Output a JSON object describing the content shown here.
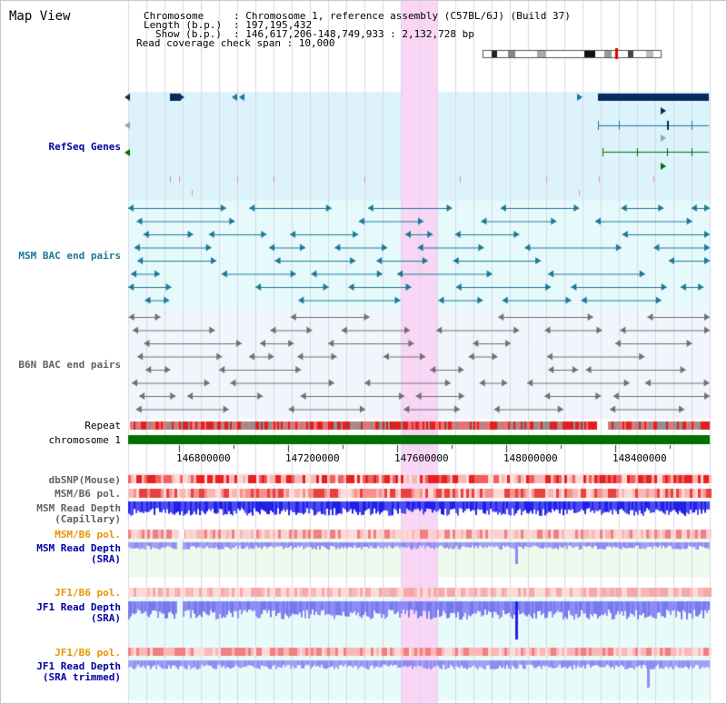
{
  "app": {
    "title": "Map View"
  },
  "info": {
    "chromosome_key": "Chromosome",
    "chromosome_val": ": Chromosome 1, reference assembly (C57BL/6J) (Build 37)",
    "length_key": "Length (b.p.)",
    "length_val": ": 197,195,432",
    "show_key": "Show (b.p.)",
    "show_val": ": 146,617,206-148,749,933 : 2,132,728 bp",
    "coverage": "Read coverage check span : 10,000"
  },
  "tracks": {
    "refseq": "RefSeq Genes",
    "msm_bac": "MSM BAC end pairs",
    "b6n_bac": "B6N BAC end pairs",
    "repeat": "Repeat",
    "chromosome": "chromosome 1",
    "dbsnp": "dbSNP(Mouse)",
    "msm_pol_1": "MSM/B6 pol.",
    "msm_depth_cap_1": "MSM Read Depth",
    "msm_depth_cap_2": "(Capillary)",
    "msm_pol_2": "MSM/B6 pol.",
    "msm_depth_sra_1": "MSM Read Depth",
    "msm_depth_sra_2": "(SRA)",
    "jf1_pol_1": "JF1/B6 pol.",
    "jf1_depth_1": "JF1 Read Depth",
    "jf1_depth_2": "(SRA)",
    "jf1_pol_2": "JF1/B6 pol.",
    "jf1_trim_1": "JF1 Read Depth",
    "jf1_trim_2": "(SRA trimmed)"
  },
  "axis": {
    "ticks": [
      "146800000",
      "147200000",
      "147600000",
      "148000000",
      "148400000"
    ]
  },
  "colors": {
    "refseq_bg": "#dcf3fb",
    "msm_bg": "#e6fafc",
    "b6n_bg": "#f2f5fb",
    "highlight": "#f9d6f5",
    "chromosome_bar": "#007000",
    "label_blue": "#0000a0",
    "label_orange": "#e69500",
    "label_gray": "#606060",
    "gene_dark": "#062a5a",
    "msm_teal": "#1a7894",
    "b6n_gray": "#707070",
    "depth_blue": "#2020e8",
    "depth_light": "#8c8cf2",
    "snp_red": "#e82020"
  }
}
